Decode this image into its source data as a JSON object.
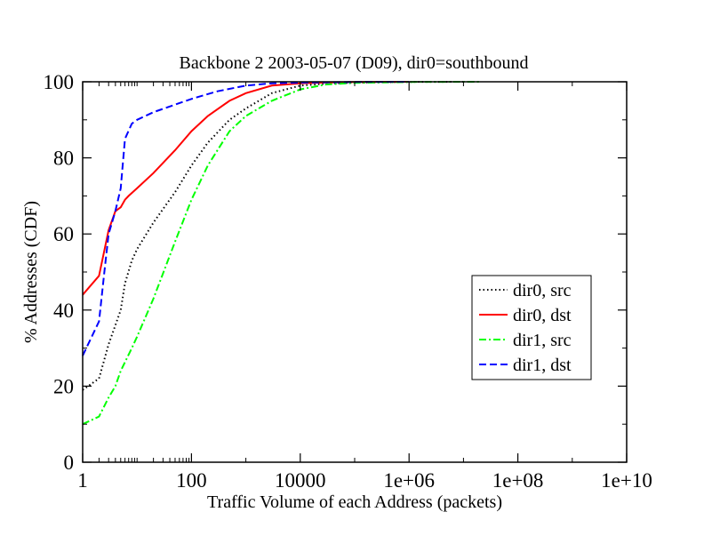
{
  "chart_data": {
    "type": "line",
    "title": "Backbone 2 2003-05-07 (D09), dir0=southbound",
    "xlabel": "Traffic Volume of each Address (packets)",
    "ylabel": "% Addresses (CDF)",
    "x_scale": "log10",
    "xlim": [
      1,
      10000000000
    ],
    "ylim": [
      0,
      100
    ],
    "x_ticks": [
      1,
      100,
      10000,
      1000000,
      100000000,
      10000000000
    ],
    "x_tick_labels": [
      "1",
      "100",
      "10000",
      "1e+06",
      "1e+08",
      "1e+10"
    ],
    "y_ticks": [
      0,
      20,
      40,
      60,
      80,
      100
    ],
    "y_tick_labels": [
      "0",
      "20",
      "40",
      "60",
      "80",
      "100"
    ],
    "grid": false,
    "legend_position": "center-right",
    "series": [
      {
        "name": "dir0, src",
        "color": "#000000",
        "dash": "dotted",
        "x": [
          1,
          2,
          3,
          4,
          5,
          6,
          8,
          10,
          20,
          50,
          100,
          200,
          500,
          1000,
          3000,
          10000,
          30000,
          100000,
          1000000,
          10000000
        ],
        "y": [
          19,
          22,
          31,
          36,
          40,
          47,
          53,
          56,
          63,
          71,
          78,
          84,
          90,
          93,
          97,
          99,
          99.5,
          99.8,
          99.95,
          100
        ]
      },
      {
        "name": "dir0, dst",
        "color": "#ff0000",
        "dash": "solid",
        "x": [
          1,
          2,
          3,
          4,
          5,
          6,
          7,
          10,
          20,
          50,
          100,
          200,
          500,
          1000,
          3000,
          10000,
          30000,
          100000,
          1000000
        ],
        "y": [
          44,
          49,
          61,
          66,
          67,
          69,
          70,
          72,
          76,
          82,
          87,
          91,
          95,
          97,
          99,
          99.6,
          99.8,
          99.95,
          100
        ]
      },
      {
        "name": "dir1, src",
        "color": "#00ff00",
        "dash": "dashdot",
        "x": [
          1,
          2,
          3,
          4,
          5,
          8,
          10,
          20,
          50,
          100,
          200,
          500,
          1000,
          3000,
          10000,
          30000,
          100000,
          1000000,
          10000000,
          20000000
        ],
        "y": [
          10,
          12,
          17,
          20,
          24,
          30,
          33,
          43,
          58,
          69,
          78,
          87,
          91,
          95,
          98,
          99.3,
          99.7,
          99.95,
          100,
          100
        ]
      },
      {
        "name": "dir1, dst",
        "color": "#0000ff",
        "dash": "dashed",
        "x": [
          1,
          2,
          2.5,
          3,
          4,
          5,
          6,
          8,
          10,
          20,
          50,
          100,
          300,
          1000,
          3000,
          10000,
          100000,
          1000000
        ],
        "y": [
          28,
          37,
          50,
          60,
          66,
          72,
          85,
          89,
          90,
          92,
          94,
          95.5,
          97.5,
          99,
          99.6,
          99.8,
          99.95,
          100
        ]
      }
    ]
  }
}
